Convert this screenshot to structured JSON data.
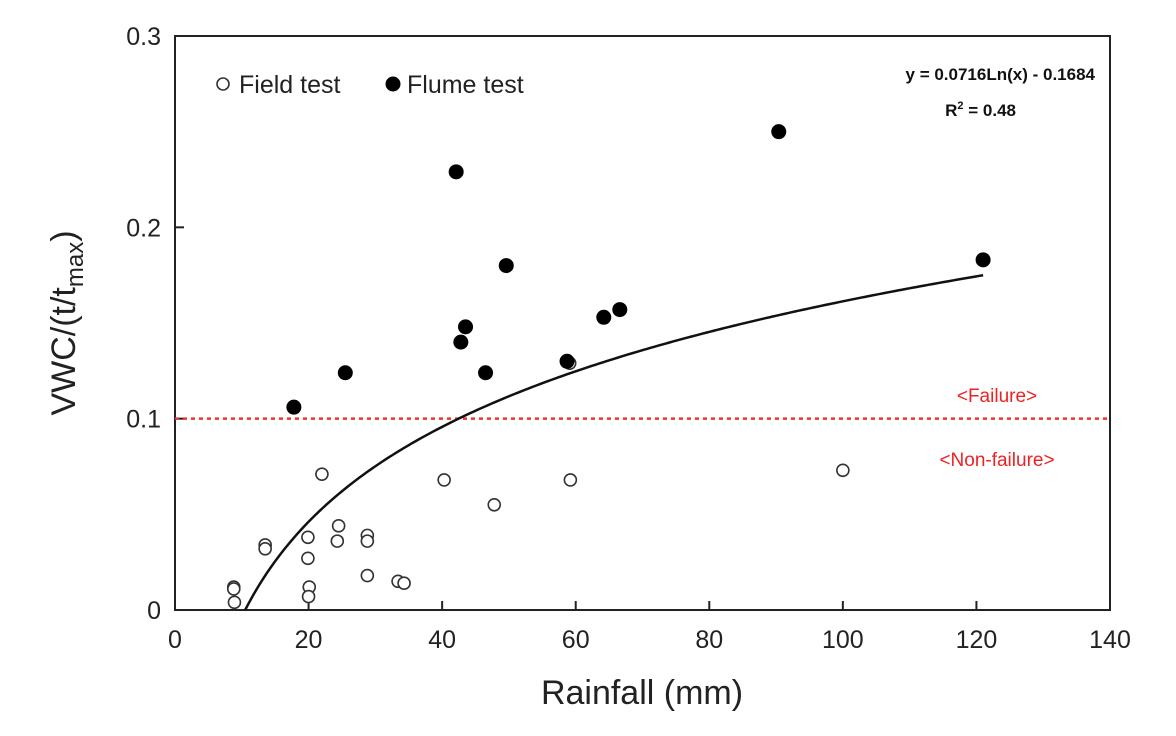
{
  "chart_data": {
    "type": "scatter",
    "xlabel": "Rainfall (mm)",
    "ylabel": "VWC/(t/t",
    "ylabel_sub": "max",
    "ylabel_close": ")",
    "xlim": [
      0,
      140
    ],
    "ylim": [
      0,
      0.3
    ],
    "xticks": [
      0,
      20,
      40,
      60,
      80,
      100,
      120,
      140
    ],
    "yticks": [
      0,
      0.1,
      0.2,
      0.3
    ],
    "ytick_labels": [
      "0",
      "0.1",
      "0.2",
      "0.3"
    ],
    "grid": false,
    "legend_position": "top-left",
    "series": [
      {
        "name": "Field test",
        "marker": "open-circle",
        "color": "#333333",
        "points": [
          {
            "x": 8.8,
            "y": 0.012
          },
          {
            "x": 8.8,
            "y": 0.011
          },
          {
            "x": 8.9,
            "y": 0.004
          },
          {
            "x": 13.5,
            "y": 0.034
          },
          {
            "x": 13.5,
            "y": 0.032
          },
          {
            "x": 19.9,
            "y": 0.038
          },
          {
            "x": 19.9,
            "y": 0.027
          },
          {
            "x": 20.1,
            "y": 0.012
          },
          {
            "x": 20.0,
            "y": 0.007
          },
          {
            "x": 22.0,
            "y": 0.071
          },
          {
            "x": 24.5,
            "y": 0.044
          },
          {
            "x": 24.3,
            "y": 0.036
          },
          {
            "x": 28.8,
            "y": 0.039
          },
          {
            "x": 28.8,
            "y": 0.036
          },
          {
            "x": 28.8,
            "y": 0.018
          },
          {
            "x": 33.4,
            "y": 0.015
          },
          {
            "x": 34.3,
            "y": 0.014
          },
          {
            "x": 40.3,
            "y": 0.068
          },
          {
            "x": 47.8,
            "y": 0.055
          },
          {
            "x": 59.2,
            "y": 0.068
          },
          {
            "x": 59.1,
            "y": 0.129
          },
          {
            "x": 100.0,
            "y": 0.073
          }
        ]
      },
      {
        "name": "Flume test",
        "marker": "filled-circle",
        "color": "#000000",
        "points": [
          {
            "x": 17.8,
            "y": 0.106
          },
          {
            "x": 25.5,
            "y": 0.124
          },
          {
            "x": 42.1,
            "y": 0.229
          },
          {
            "x": 42.8,
            "y": 0.14
          },
          {
            "x": 43.5,
            "y": 0.148
          },
          {
            "x": 46.5,
            "y": 0.124
          },
          {
            "x": 49.6,
            "y": 0.18
          },
          {
            "x": 58.7,
            "y": 0.13
          },
          {
            "x": 64.2,
            "y": 0.153
          },
          {
            "x": 66.6,
            "y": 0.157
          },
          {
            "x": 90.4,
            "y": 0.25
          },
          {
            "x": 121.0,
            "y": 0.183
          }
        ]
      }
    ],
    "fit": {
      "equation": "y = 0.0716Ln(x) - 0.1684",
      "r2_label": "R",
      "r2_sup": "2",
      "r2_value": " = 0.48",
      "a": 0.0716,
      "b": -0.1684,
      "x_range": [
        10.5,
        121
      ],
      "color": "#111111"
    },
    "threshold": {
      "y": 0.1,
      "color": "#ee3333",
      "style": "dotted",
      "label_above": "<Failure>",
      "label_below": "<Non-failure>"
    }
  }
}
